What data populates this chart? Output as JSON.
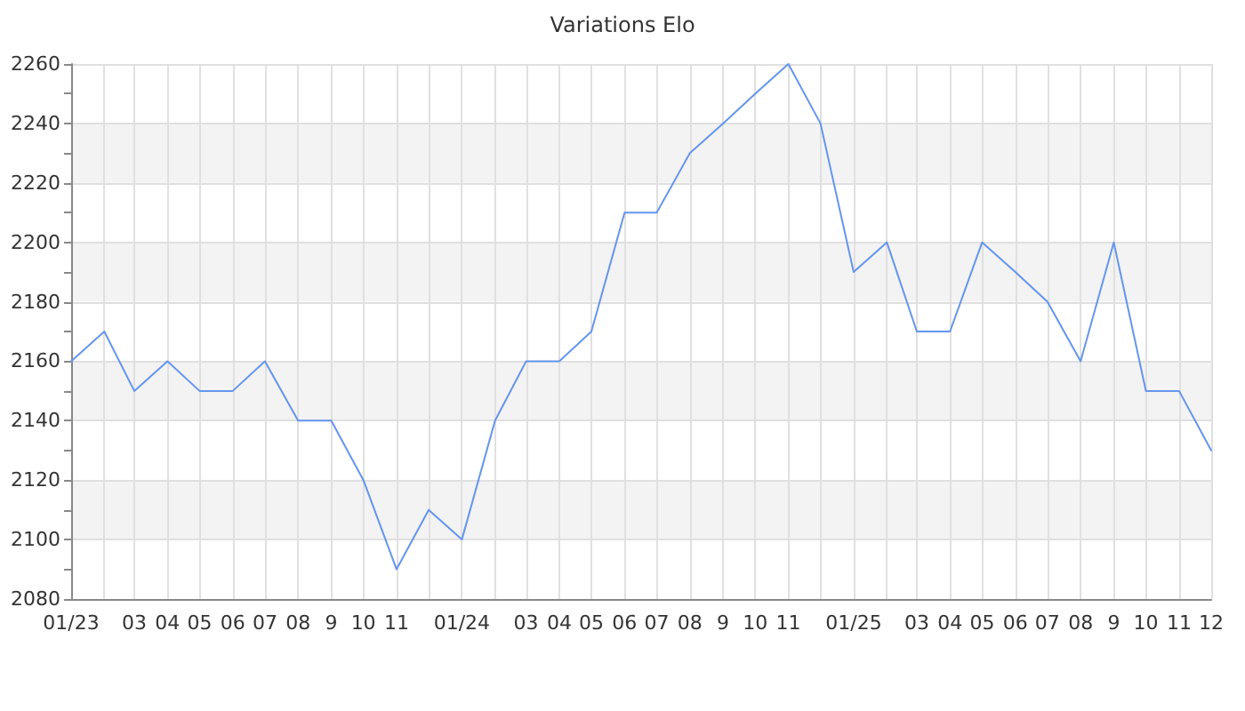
{
  "chart_data": {
    "type": "line",
    "title": "Variations Elo",
    "x": [
      "2023-01",
      "2023-02",
      "2023-03",
      "2023-04",
      "2023-05",
      "2023-06",
      "2023-07",
      "2023-08",
      "2023-09",
      "2023-10",
      "2023-11",
      "2023-12",
      "2024-01",
      "2024-02",
      "2024-03",
      "2024-04",
      "2024-05",
      "2024-06",
      "2024-07",
      "2024-08",
      "2024-09",
      "2024-10",
      "2024-11",
      "2024-12",
      "2025-01",
      "2025-02",
      "2025-03",
      "2025-04",
      "2025-05",
      "2025-06",
      "2025-07",
      "2025-08",
      "2025-09",
      "2025-10",
      "2025-11",
      "2025-12"
    ],
    "values": [
      2160,
      2170,
      2150,
      2160,
      2150,
      2150,
      2160,
      2140,
      2140,
      2120,
      2090,
      2110,
      2100,
      2140,
      2160,
      2160,
      2170,
      2210,
      2210,
      2230,
      2240,
      2250,
      2260,
      2240,
      2190,
      2200,
      2170,
      2170,
      2200,
      2190,
      2180,
      2160,
      2200,
      2150,
      2150,
      2130
    ],
    "color": "#6495ed",
    "xlim": [
      "2023-01",
      "2025-12"
    ],
    "xticks": [
      {
        "value": "2023-01",
        "label": "01/23"
      },
      {
        "value": "2023-02",
        "label": null
      },
      {
        "value": "2023-03",
        "label": "03"
      },
      {
        "value": "2023-04",
        "label": "04"
      },
      {
        "value": "2023-05",
        "label": "05"
      },
      {
        "value": "2023-06",
        "label": "06"
      },
      {
        "value": "2023-07",
        "label": "07"
      },
      {
        "value": "2023-08",
        "label": "08"
      },
      {
        "value": "2023-09",
        "label": "9"
      },
      {
        "value": "2023-10",
        "label": "10"
      },
      {
        "value": "2023-11",
        "label": "11"
      },
      {
        "value": "2023-12",
        "label": null
      },
      {
        "value": "2024-01",
        "label": "01/24"
      },
      {
        "value": "2024-02",
        "label": null
      },
      {
        "value": "2024-03",
        "label": "03"
      },
      {
        "value": "2024-04",
        "label": "04"
      },
      {
        "value": "2024-05",
        "label": "05"
      },
      {
        "value": "2024-06",
        "label": "06"
      },
      {
        "value": "2024-07",
        "label": "07"
      },
      {
        "value": "2024-08",
        "label": "08"
      },
      {
        "value": "2024-09",
        "label": "9"
      },
      {
        "value": "2024-10",
        "label": "10"
      },
      {
        "value": "2024-11",
        "label": "11"
      },
      {
        "value": "2024-12",
        "label": null
      },
      {
        "value": "2025-01",
        "label": "01/25"
      },
      {
        "value": "2025-02",
        "label": null
      },
      {
        "value": "2025-03",
        "label": "03"
      },
      {
        "value": "2025-04",
        "label": "04"
      },
      {
        "value": "2025-05",
        "label": "05"
      },
      {
        "value": "2025-06",
        "label": "06"
      },
      {
        "value": "2025-07",
        "label": "07"
      },
      {
        "value": "2025-08",
        "label": "08"
      },
      {
        "value": "2025-09",
        "label": "9"
      },
      {
        "value": "2025-10",
        "label": "10"
      },
      {
        "value": "2025-11",
        "label": "11"
      },
      {
        "value": "2025-12",
        "label": "12"
      }
    ],
    "ylim": [
      2080,
      2260
    ],
    "yticks": [
      2080,
      {
        "value": 2090,
        "label": null
      },
      2100,
      {
        "value": 2110,
        "label": null
      },
      2120,
      {
        "value": 2130,
        "label": null
      },
      2140,
      {
        "value": 2150,
        "label": null
      },
      2160,
      {
        "value": 2170,
        "label": null
      },
      2180,
      {
        "value": 2190,
        "label": null
      },
      2200,
      {
        "value": 2210,
        "label": null
      },
      2220,
      {
        "value": 2230,
        "label": null
      },
      2240,
      {
        "value": 2250,
        "label": null
      },
      2260
    ],
    "grid": true,
    "marker": "none",
    "line_style": "solid"
  }
}
